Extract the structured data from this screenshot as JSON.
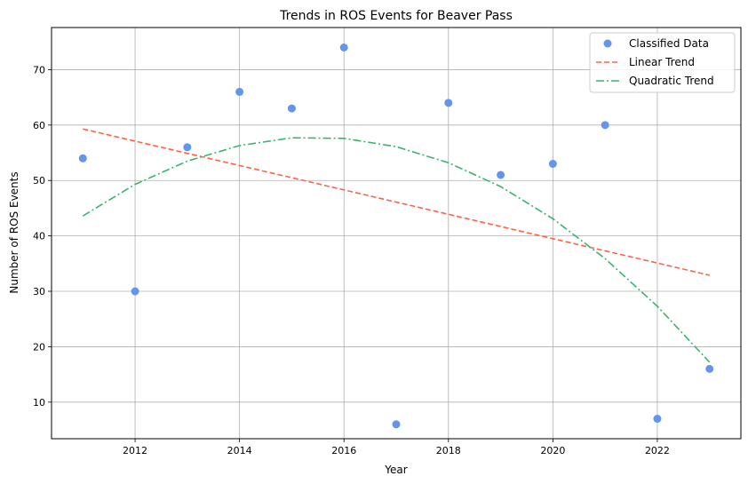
{
  "chart_data": {
    "type": "scatter",
    "title": "Trends in ROS Events for Beaver Pass",
    "xlabel": "Year",
    "ylabel": "Number of ROS Events",
    "xlim": [
      2010.4,
      2023.6
    ],
    "ylim": [
      3.4,
      77.6
    ],
    "xticks": [
      2012,
      2014,
      2016,
      2018,
      2020,
      2022
    ],
    "yticks": [
      10,
      20,
      30,
      40,
      50,
      60,
      70
    ],
    "grid": true,
    "legend_position": "top-right",
    "series": [
      {
        "name": "Classified Data",
        "kind": "scatter",
        "color": "#6495ED",
        "x": [
          2011,
          2012,
          2013,
          2014,
          2015,
          2016,
          2017,
          2018,
          2019,
          2020,
          2021,
          2022,
          2023
        ],
        "y": [
          54,
          30,
          56,
          66,
          63,
          74,
          6,
          64,
          51,
          53,
          60,
          7,
          16
        ]
      },
      {
        "name": "Linear Trend",
        "kind": "line",
        "style": "dashed",
        "color": "#FF6347",
        "x": [
          2011,
          2023
        ],
        "y": [
          59.3,
          32.9
        ]
      },
      {
        "name": "Quadratic Trend",
        "kind": "line",
        "style": "dashdot",
        "color": "#3CB371",
        "x": [
          2011,
          2012,
          2013,
          2014,
          2015,
          2016,
          2017,
          2018,
          2019,
          2020,
          2021,
          2022,
          2023
        ],
        "y": [
          43.6,
          49.3,
          53.5,
          56.3,
          57.7,
          57.6,
          56.1,
          53.2,
          48.9,
          43.1,
          35.9,
          27.3,
          17.2
        ]
      }
    ]
  }
}
